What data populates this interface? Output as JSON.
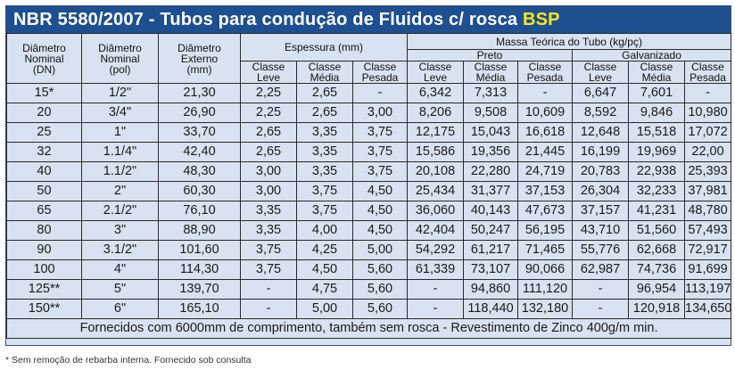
{
  "title": {
    "standard": "NBR 5580/2007",
    "separator": " - ",
    "main": "Tubos para condução de Fluidos c/ rosca ",
    "highlight": "BSP"
  },
  "colors": {
    "title_bg": "#1d4f91",
    "title_text": "#ffffff",
    "title_highlight": "#ffe51e",
    "table_bg": "#d9e2f0",
    "grid_lines": "#2a2a2a"
  },
  "headers": {
    "dn": [
      "Diâmetro",
      "Nominal",
      "(DN)"
    ],
    "pol": [
      "Diâmetro",
      "Nominal",
      "(pol)"
    ],
    "ext": [
      "Diâmetro",
      "Externo",
      "(mm)"
    ],
    "espessura": "Espessura (mm)",
    "massa": "Massa Teórica do Tubo (kg/pç)",
    "preto": "Preto",
    "galvanizado": "Galvanizado",
    "classes": [
      [
        "Classe",
        "Leve"
      ],
      [
        "Classe",
        "Média"
      ],
      [
        "Classe",
        "Pesada"
      ]
    ]
  },
  "rows": [
    [
      "15*",
      "1/2\"",
      "21,30",
      "2,25",
      "2,65",
      "-",
      "6,342",
      "7,313",
      "-",
      "6,647",
      "7,601",
      "-"
    ],
    [
      "20",
      "3/4\"",
      "26,90",
      "2,25",
      "2,65",
      "3,00",
      "8,206",
      "9,508",
      "10,609",
      "8,592",
      "9,846",
      "10,980"
    ],
    [
      "25",
      "1\"",
      "33,70",
      "2,65",
      "3,35",
      "3,75",
      "12,175",
      "15,043",
      "16,618",
      "12,648",
      "15,518",
      "17,072"
    ],
    [
      "32",
      "1.1/4\"",
      "42,40",
      "2,65",
      "3,35",
      "3,75",
      "15,586",
      "19,356",
      "21,445",
      "16,199",
      "19,969",
      "22,00"
    ],
    [
      "40",
      "1.1/2\"",
      "48,30",
      "3,00",
      "3,35",
      "3,75",
      "20,108",
      "22,280",
      "24,719",
      "20,783",
      "22,938",
      "25,393"
    ],
    [
      "50",
      "2\"",
      "60,30",
      "3,00",
      "3,75",
      "4,50",
      "25,434",
      "31,377",
      "37,153",
      "26,304",
      "32,233",
      "37,981"
    ],
    [
      "65",
      "2.1/2\"",
      "76,10",
      "3,35",
      "3,75",
      "4,50",
      "36,060",
      "40,143",
      "47,673",
      "37,157",
      "41,231",
      "48,780"
    ],
    [
      "80",
      "3\"",
      "88,90",
      "3,35",
      "4,00",
      "4,50",
      "42,404",
      "50,247",
      "56,195",
      "43,710",
      "51,560",
      "57,493"
    ],
    [
      "90",
      "3.1/2\"",
      "101,60",
      "3,75",
      "4,25",
      "5,00",
      "54,292",
      "61,217",
      "71,465",
      "55,776",
      "62,668",
      "72,917"
    ],
    [
      "100",
      "4\"",
      "114,30",
      "3,75",
      "4,50",
      "5,60",
      "61,339",
      "73,107",
      "90,066",
      "62,987",
      "74,736",
      "91,699"
    ],
    [
      "125**",
      "5\"",
      "139,70",
      "-",
      "4,75",
      "5,60",
      "-",
      "94,860",
      "111,120",
      "-",
      "96,954",
      "113,197"
    ],
    [
      "150**",
      "6\"",
      "165,10",
      "-",
      "5,00",
      "5,60",
      "-",
      "118,440",
      "132,180",
      "-",
      "120,918",
      "134,650"
    ]
  ],
  "footer_row": "Fornecidos com 6000mm de comprimento, também sem rosca - Revestimento de Zinco 400g/m min.",
  "footnote": "* Sem remoção de rebarba interna. Fornecido sob consulta"
}
